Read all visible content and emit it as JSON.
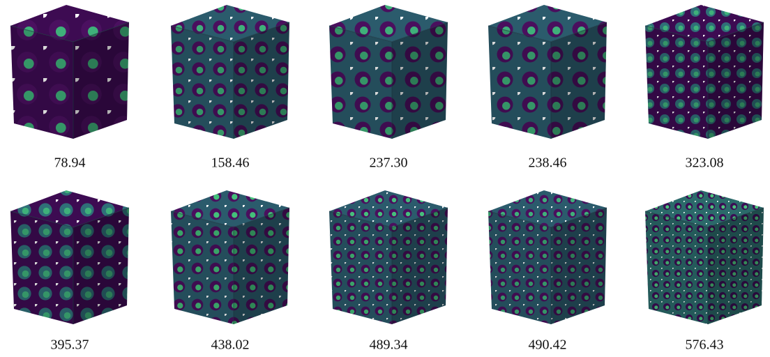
{
  "panels": [
    {
      "label": "78.94"
    },
    {
      "label": "158.46"
    },
    {
      "label": "237.30"
    },
    {
      "label": "238.46"
    },
    {
      "label": "323.08"
    },
    {
      "label": "395.37"
    },
    {
      "label": "438.02"
    },
    {
      "label": "489.34"
    },
    {
      "label": "490.42"
    },
    {
      "label": "576.43"
    }
  ]
}
